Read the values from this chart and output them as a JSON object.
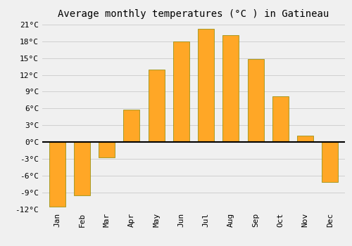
{
  "title": "Average monthly temperatures (°C ) in Gatineau",
  "months": [
    "Jan",
    "Feb",
    "Mar",
    "Apr",
    "May",
    "Jun",
    "Jul",
    "Aug",
    "Sep",
    "Oct",
    "Nov",
    "Dec"
  ],
  "temperatures": [
    -11.5,
    -9.5,
    -2.7,
    5.8,
    13.0,
    18.0,
    20.3,
    19.1,
    14.8,
    8.2,
    1.2,
    -7.2
  ],
  "bar_color": "#FFA726",
  "bar_edge_color": "#888800",
  "ylim": [
    -12,
    21
  ],
  "yticks": [
    -12,
    -9,
    -6,
    -3,
    0,
    3,
    6,
    9,
    12,
    15,
    18,
    21
  ],
  "ytick_labels": [
    "-12°C",
    "-9°C",
    "-6°C",
    "-3°C",
    "0°C",
    "3°C",
    "6°C",
    "9°C",
    "12°C",
    "15°C",
    "18°C",
    "21°C"
  ],
  "background_color": "#f0f0f0",
  "grid_color": "#d0d0d0",
  "title_fontsize": 10,
  "tick_fontsize": 8,
  "bar_width": 0.65,
  "figsize": [
    5.0,
    3.5
  ],
  "dpi": 100
}
